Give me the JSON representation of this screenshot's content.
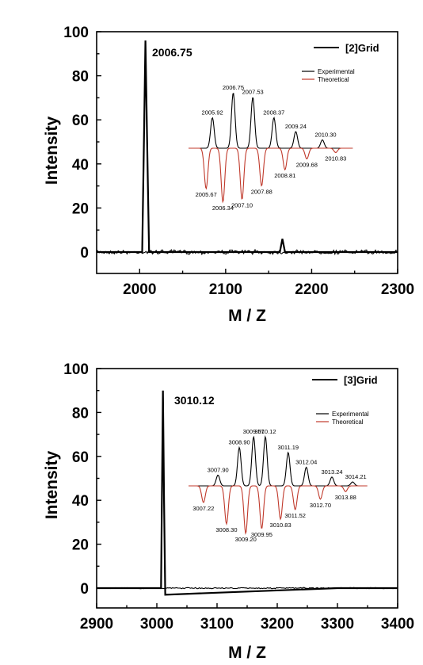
{
  "chart_data": [
    {
      "type": "line",
      "xlabel": "M / Z",
      "ylabel": "Intensity",
      "xlim": [
        1950,
        2300
      ],
      "ylim": [
        -8,
        100
      ],
      "xticks": [
        "2000",
        "2100",
        "2200",
        "2300"
      ],
      "yticks": [
        "0",
        "20",
        "40",
        "60",
        "80",
        "100"
      ],
      "legend": {
        "label": "[2]Grid",
        "position": "top-right",
        "color": "#000000"
      },
      "peak": {
        "x": 2006.75,
        "y": 96,
        "label": "2006.75"
      },
      "series": [
        {
          "name": "[2]Grid",
          "x": [
            1950,
            2003,
            2005,
            2006.75,
            2008.5,
            2011,
            2163,
            2166,
            2169,
            2300
          ],
          "y": [
            0,
            0,
            50,
            96,
            55,
            0,
            0,
            6,
            0,
            0
          ]
        }
      ],
      "inset": {
        "legend": [
          {
            "label": "Experimental",
            "color": "#000000"
          },
          {
            "label": "Theoretical",
            "color": "#c0392b"
          }
        ],
        "experimental": [
          {
            "mz": 2005.92,
            "label": "2005.92",
            "y": 55
          },
          {
            "mz": 2006.75,
            "label": "2006.75",
            "y": 100
          },
          {
            "mz": 2007.53,
            "label": "2007.53",
            "y": 92
          },
          {
            "mz": 2008.37,
            "label": "2008.37",
            "y": 55
          },
          {
            "mz": 2009.24,
            "label": "2009.24",
            "y": 30
          },
          {
            "mz": 2010.3,
            "label": "2010.30",
            "y": 15
          }
        ],
        "theoretical": [
          {
            "mz": 2005.67,
            "label": "2005.67",
            "y": 75
          },
          {
            "mz": 2006.34,
            "label": "2006.34",
            "y": 100
          },
          {
            "mz": 2007.1,
            "label": "2007.10",
            "y": 95
          },
          {
            "mz": 2007.88,
            "label": "2007.88",
            "y": 70
          },
          {
            "mz": 2008.81,
            "label": "2008.81",
            "y": 40
          },
          {
            "mz": 2009.68,
            "label": "2009.68",
            "y": 20
          },
          {
            "mz": 2010.83,
            "label": "2010.83",
            "y": 8
          }
        ]
      }
    },
    {
      "type": "line",
      "xlabel": "M / Z",
      "ylabel": "Intensity",
      "xlim": [
        2900,
        3400
      ],
      "ylim": [
        -8,
        100
      ],
      "xticks": [
        "2900",
        "3000",
        "3100",
        "3200",
        "3300",
        "3400"
      ],
      "yticks": [
        "0",
        "20",
        "40",
        "60",
        "80",
        "100"
      ],
      "legend": {
        "label": "[3]Grid",
        "position": "top-right",
        "color": "#000000"
      },
      "peak": {
        "x": 3010.12,
        "y": 90,
        "label": "3010.12"
      },
      "series": [
        {
          "name": "[3]Grid",
          "x": [
            2900,
            3007,
            3008.5,
            3010.12,
            3012,
            3014,
            3300,
            3400
          ],
          "y": [
            0,
            0,
            45,
            90,
            40,
            -3,
            0,
            0
          ]
        }
      ],
      "inset": {
        "legend": [
          {
            "label": "Experimental",
            "color": "#000000"
          },
          {
            "label": "Theoretical",
            "color": "#c0392b"
          }
        ],
        "experimental": [
          {
            "mz": 3007.9,
            "label": "3007.90",
            "y": 22
          },
          {
            "mz": 3008.9,
            "label": "3008.90",
            "y": 78
          },
          {
            "mz": 3009.57,
            "label": "3009.57",
            "y": 100
          },
          {
            "mz": 3010.12,
            "label": "3010.12",
            "y": 100
          },
          {
            "mz": 3011.19,
            "label": "3011.19",
            "y": 68
          },
          {
            "mz": 3012.04,
            "label": "3012.04",
            "y": 38
          },
          {
            "mz": 3013.24,
            "label": "3013.24",
            "y": 18
          },
          {
            "mz": 3014.21,
            "label": "3014.21",
            "y": 8
          }
        ],
        "theoretical": [
          {
            "mz": 3007.22,
            "label": "3007.22",
            "y": 35
          },
          {
            "mz": 3008.3,
            "label": "3008.30",
            "y": 80
          },
          {
            "mz": 3009.2,
            "label": "3009.20",
            "y": 100
          },
          {
            "mz": 3009.95,
            "label": "3009.95",
            "y": 90
          },
          {
            "mz": 3010.83,
            "label": "3010.83",
            "y": 70
          },
          {
            "mz": 3011.52,
            "label": "3011.52",
            "y": 50
          },
          {
            "mz": 3012.7,
            "label": "3012.70",
            "y": 28
          },
          {
            "mz": 3013.88,
            "label": "3013.88",
            "y": 12
          }
        ]
      }
    }
  ]
}
